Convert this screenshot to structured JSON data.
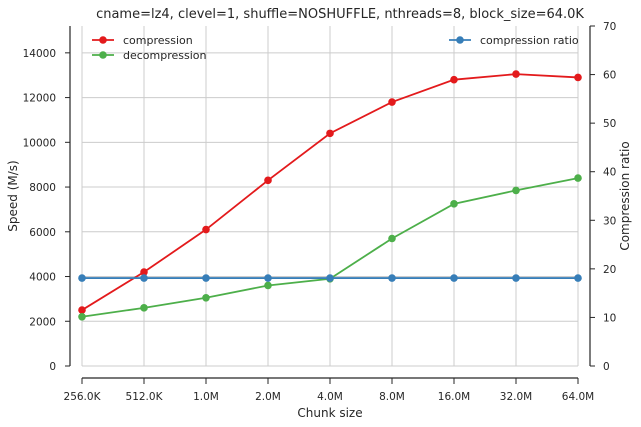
{
  "chart_data": {
    "type": "line",
    "title": "cname=lz4, clevel=1, shuffle=NOSHUFFLE, nthreads=8, block_size=64.0K",
    "xlabel": "Chunk size",
    "ylabel": "Speed (M/s)",
    "ylabel_right": "Compression ratio",
    "categories": [
      "256.0K",
      "512.0K",
      "1.0M",
      "2.0M",
      "4.0M",
      "8.0M",
      "16.0M",
      "32.0M",
      "64.0M"
    ],
    "ylim": [
      0,
      15200
    ],
    "yticks": [
      "0",
      "2000",
      "4000",
      "6000",
      "8000",
      "10000",
      "12000",
      "14000"
    ],
    "ylim_right": [
      0,
      70
    ],
    "yticks_right": [
      "0",
      "10",
      "20",
      "30",
      "40",
      "50",
      "60",
      "70"
    ],
    "grid": true,
    "series": [
      {
        "name": "compression",
        "axis": "left",
        "color": "#e31a1c",
        "values": [
          2500,
          4200,
          6100,
          8300,
          10400,
          11800,
          12800,
          13050,
          12900
        ]
      },
      {
        "name": "decompression",
        "axis": "left",
        "color": "#4daf4a",
        "values": [
          2200,
          2600,
          3050,
          3600,
          3900,
          5700,
          7250,
          7850,
          8400
        ]
      },
      {
        "name": "compression ratio",
        "axis": "right",
        "color": "#377eb8",
        "values": [
          18.1,
          18.1,
          18.1,
          18.1,
          18.1,
          18.1,
          18.1,
          18.1,
          18.1
        ]
      }
    ],
    "legend": [
      {
        "position": "top-left",
        "entries": [
          "compression",
          "decompression"
        ]
      },
      {
        "position": "top-right",
        "entries": [
          "compression ratio"
        ]
      }
    ]
  }
}
